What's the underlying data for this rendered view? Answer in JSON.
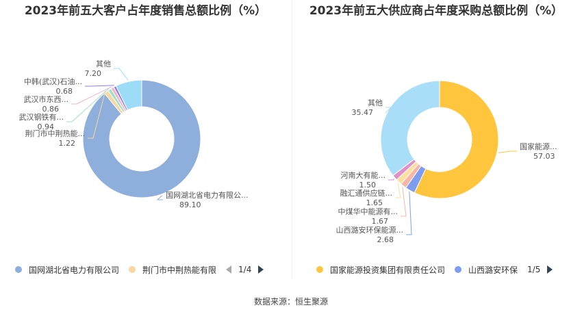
{
  "charts": {
    "left": {
      "title": "2023年前五大客户占年度销售总额比例（%）",
      "legend": {
        "items": [
          {
            "label": "国网湖北省电力有限公司",
            "color": "#8eaedb"
          },
          {
            "label": "荆门市中荆热能有限",
            "color": "#f9d7a0"
          }
        ],
        "page": "1/4"
      }
    },
    "right": {
      "title": "2023年前五大供应商占年度采购总额比例（%）",
      "legend": {
        "items": [
          {
            "label": "国家能源投资集团有限责任公司",
            "color": "#ffc53d"
          },
          {
            "label": "山西潞安环保",
            "color": "#7d9ef0"
          }
        ],
        "page": "1/5"
      }
    }
  },
  "chart_data": [
    {
      "type": "pie",
      "title": "2023年前五大客户占年度销售总额比例（%）",
      "slices": [
        {
          "label": "国网湖北省电力有限公...",
          "value": 89.1,
          "value_label": "89.10",
          "color": "#8eaedb"
        },
        {
          "label": "荆门市中荆热能...",
          "value": 1.22,
          "value_label": "1.22",
          "color": "#f9d7a0"
        },
        {
          "label": "武汉钢铁有...",
          "value": 0.94,
          "value_label": "0.94",
          "color": "#9fe0c8"
        },
        {
          "label": "武汉市东西...",
          "value": 0.86,
          "value_label": "0.86",
          "color": "#f7b3c8"
        },
        {
          "label": "中韩(武汉)石油...",
          "value": 0.68,
          "value_label": "0.68",
          "color": "#8c7cf0"
        },
        {
          "label": "其他",
          "value": 7.2,
          "value_label": "7.20",
          "color": "#9ddcf7"
        }
      ]
    },
    {
      "type": "pie",
      "title": "2023年前五大供应商占年度采购总额比例（%）",
      "slices": [
        {
          "label": "国家能源...",
          "value": 57.03,
          "value_label": "57.03",
          "color": "#ffc53d"
        },
        {
          "label": "山西潞安环保能源...",
          "value": 2.68,
          "value_label": "2.68",
          "color": "#7d9ef0"
        },
        {
          "label": "中煤华中能源有...",
          "value": 1.67,
          "value_label": "1.67",
          "color": "#f8b6a8"
        },
        {
          "label": "融汇通供应链...",
          "value": 1.65,
          "value_label": "1.65",
          "color": "#fde0a0"
        },
        {
          "label": "河南大有能...",
          "value": 1.5,
          "value_label": "1.50",
          "color": "#e090c8"
        },
        {
          "label": "其他",
          "value": 35.47,
          "value_label": "35.47",
          "color": "#a9def9"
        }
      ]
    }
  ],
  "footer": {
    "source": "数据来源：恒生聚源"
  }
}
